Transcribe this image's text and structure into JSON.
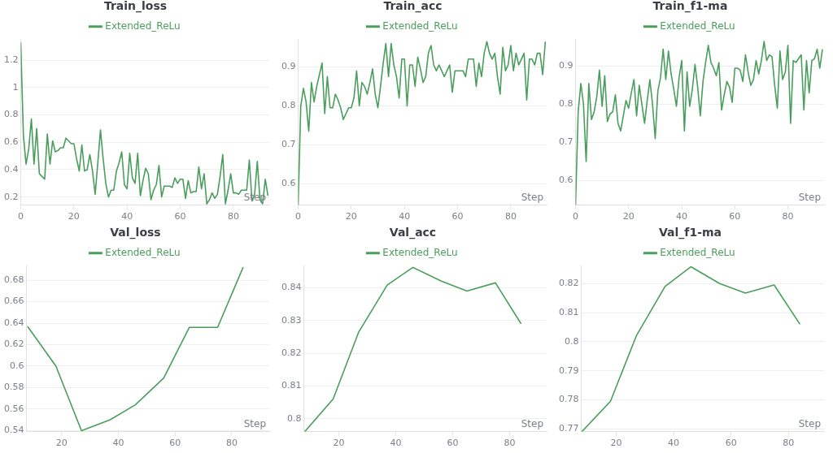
{
  "chart_data": [
    {
      "type": "line",
      "title": "Train_loss",
      "xlabel": "Step",
      "grid": "y",
      "legend": "top",
      "marker": "none",
      "xlim": [
        0,
        93.5
      ],
      "ylim": [
        0.14,
        1.35
      ],
      "xticks": [
        0,
        20,
        40,
        60,
        80
      ],
      "yticks": [
        0.2,
        0.4,
        0.6,
        0.8,
        1,
        1.2
      ],
      "x": [
        0,
        1,
        2,
        3,
        4,
        5,
        6,
        7,
        8,
        9,
        10,
        11,
        12,
        13,
        14,
        15,
        16,
        17,
        18,
        19,
        20,
        21,
        22,
        23,
        24,
        25,
        26,
        27,
        28,
        29,
        30,
        31,
        32,
        33,
        34,
        35,
        36,
        37,
        38,
        39,
        40,
        41,
        42,
        43,
        44,
        45,
        46,
        47,
        48,
        49,
        50,
        51,
        52,
        53,
        54,
        55,
        56,
        57,
        58,
        59,
        60,
        61,
        62,
        63,
        64,
        65,
        66,
        67,
        68,
        69,
        70,
        71,
        72,
        73,
        74,
        75,
        76,
        77,
        78,
        79,
        80,
        81,
        82,
        83,
        84,
        85,
        86,
        87,
        88,
        89,
        90,
        91,
        92,
        93
      ],
      "series": [
        {
          "name": "Extended_ReLu",
          "color": "#4a9e5c",
          "values": [
            1.33,
            0.65,
            0.44,
            0.55,
            0.77,
            0.44,
            0.7,
            0.37,
            0.35,
            0.33,
            0.66,
            0.44,
            0.61,
            0.53,
            0.54,
            0.56,
            0.56,
            0.63,
            0.61,
            0.59,
            0.59,
            0.48,
            0.39,
            0.58,
            0.39,
            0.4,
            0.51,
            0.39,
            0.22,
            0.45,
            0.69,
            0.48,
            0.3,
            0.2,
            0.25,
            0.25,
            0.39,
            0.45,
            0.53,
            0.29,
            0.26,
            0.52,
            0.34,
            0.3,
            0.52,
            0.21,
            0.32,
            0.41,
            0.37,
            0.18,
            0.25,
            0.29,
            0.43,
            0.2,
            0.28,
            0.28,
            0.28,
            0.27,
            0.34,
            0.3,
            0.33,
            0.33,
            0.19,
            0.32,
            0.23,
            0.24,
            0.24,
            0.42,
            0.26,
            0.37,
            0.15,
            0.18,
            0.23,
            0.19,
            0.22,
            0.35,
            0.51,
            0.15,
            0.25,
            0.37,
            0.23,
            0.23,
            0.22,
            0.25,
            0.25,
            0.25,
            0.47,
            0.17,
            0.22,
            0.46,
            0.18,
            0.15,
            0.33,
            0.21
          ]
        }
      ]
    },
    {
      "type": "line",
      "title": "Train_acc",
      "xlabel": "Step",
      "grid": "y",
      "legend": "top",
      "marker": "none",
      "xlim": [
        0,
        93.5
      ],
      "ylim": [
        0.545,
        0.97
      ],
      "xticks": [
        0,
        20,
        40,
        60,
        80
      ],
      "yticks": [
        0.6,
        0.7,
        0.8,
        0.9
      ],
      "x": [
        0,
        1,
        2,
        3,
        4,
        5,
        6,
        7,
        8,
        9,
        10,
        11,
        12,
        13,
        14,
        15,
        16,
        17,
        18,
        19,
        20,
        21,
        22,
        23,
        24,
        25,
        26,
        27,
        28,
        29,
        30,
        31,
        32,
        33,
        34,
        35,
        36,
        37,
        38,
        39,
        40,
        41,
        42,
        43,
        44,
        45,
        46,
        47,
        48,
        49,
        50,
        51,
        52,
        53,
        54,
        55,
        56,
        57,
        58,
        59,
        60,
        61,
        62,
        63,
        64,
        65,
        66,
        67,
        68,
        69,
        70,
        71,
        72,
        73,
        74,
        75,
        76,
        77,
        78,
        79,
        80,
        81,
        82,
        83,
        84,
        85,
        86,
        87,
        88,
        89,
        90,
        91,
        92,
        93
      ],
      "series": [
        {
          "name": "Extended_ReLu",
          "color": "#4a9e5c",
          "values": [
            0.545,
            0.8,
            0.845,
            0.81,
            0.735,
            0.86,
            0.81,
            0.85,
            0.88,
            0.91,
            0.78,
            0.875,
            0.795,
            0.795,
            0.83,
            0.815,
            0.795,
            0.765,
            0.78,
            0.795,
            0.795,
            0.82,
            0.89,
            0.8,
            0.86,
            0.85,
            0.83,
            0.86,
            0.895,
            0.83,
            0.795,
            0.85,
            0.91,
            0.96,
            0.875,
            0.96,
            0.905,
            0.875,
            0.82,
            0.92,
            0.92,
            0.8,
            0.905,
            0.905,
            0.85,
            0.925,
            0.895,
            0.86,
            0.875,
            0.935,
            0.955,
            0.905,
            0.89,
            0.905,
            0.89,
            0.875,
            0.89,
            0.905,
            0.835,
            0.89,
            0.89,
            0.89,
            0.89,
            0.875,
            0.92,
            0.92,
            0.92,
            0.85,
            0.91,
            0.875,
            0.935,
            0.965,
            0.935,
            0.92,
            0.935,
            0.875,
            0.83,
            0.95,
            0.89,
            0.905,
            0.955,
            0.89,
            0.935,
            0.905,
            0.92,
            0.935,
            0.815,
            0.92,
            0.92,
            0.905,
            0.935,
            0.935,
            0.88,
            0.965
          ]
        }
      ]
    },
    {
      "type": "line",
      "title": "Train_f1-ma",
      "xlabel": "Step",
      "grid": "y",
      "legend": "top",
      "marker": "none",
      "xlim": [
        0,
        93.6
      ],
      "ylim": [
        0.535,
        0.97
      ],
      "xticks": [
        0,
        20,
        40,
        60,
        80
      ],
      "yticks": [
        0.6,
        0.7,
        0.8,
        0.9
      ],
      "x": [
        0,
        1,
        2,
        3,
        4,
        5,
        6,
        7,
        8,
        9,
        10,
        11,
        12,
        13,
        14,
        15,
        16,
        17,
        18,
        19,
        20,
        21,
        22,
        23,
        24,
        25,
        26,
        27,
        28,
        29,
        30,
        31,
        32,
        33,
        34,
        35,
        36,
        37,
        38,
        39,
        40,
        41,
        42,
        43,
        44,
        45,
        46,
        47,
        48,
        49,
        50,
        51,
        52,
        53,
        54,
        55,
        56,
        57,
        58,
        59,
        60,
        61,
        62,
        63,
        64,
        65,
        66,
        67,
        68,
        69,
        70,
        71,
        72,
        73,
        74,
        75,
        76,
        77,
        78,
        79,
        80,
        81,
        82,
        83,
        84,
        85,
        86,
        87,
        88,
        89,
        90,
        91,
        92,
        93
      ],
      "series": [
        {
          "name": "Extended_ReLu",
          "color": "#4a9e5c",
          "values": [
            0.535,
            0.78,
            0.855,
            0.8,
            0.65,
            0.855,
            0.76,
            0.78,
            0.82,
            0.89,
            0.795,
            0.875,
            0.755,
            0.775,
            0.78,
            0.825,
            0.75,
            0.73,
            0.77,
            0.81,
            0.79,
            0.83,
            0.865,
            0.77,
            0.85,
            0.8,
            0.75,
            0.81,
            0.865,
            0.8,
            0.71,
            0.835,
            0.87,
            0.945,
            0.865,
            0.94,
            0.88,
            0.84,
            0.795,
            0.87,
            0.915,
            0.73,
            0.885,
            0.795,
            0.84,
            0.905,
            0.845,
            0.77,
            0.86,
            0.91,
            0.955,
            0.91,
            0.895,
            0.875,
            0.91,
            0.785,
            0.825,
            0.86,
            0.845,
            0.805,
            0.895,
            0.895,
            0.89,
            0.86,
            0.93,
            0.885,
            0.85,
            0.865,
            0.915,
            0.88,
            0.915,
            0.965,
            0.915,
            0.93,
            0.925,
            0.85,
            0.79,
            0.94,
            0.865,
            0.885,
            0.955,
            0.75,
            0.915,
            0.91,
            0.92,
            0.93,
            0.785,
            0.915,
            0.83,
            0.915,
            0.92,
            0.945,
            0.895,
            0.945
          ]
        }
      ]
    },
    {
      "type": "line",
      "title": "Val_loss",
      "xlabel": "Step",
      "grid": "y",
      "legend": "top",
      "marker": "none",
      "xlim": [
        7.6,
        93.2
      ],
      "ylim": [
        0.539,
        0.693
      ],
      "xticks": [
        20,
        40,
        60,
        80
      ],
      "yticks": [
        0.54,
        0.56,
        0.58,
        0.6,
        0.62,
        0.64,
        0.66,
        0.68
      ],
      "x": [
        8,
        18,
        27,
        37,
        46,
        56,
        65,
        75,
        84
      ],
      "series": [
        {
          "name": "Extended_ReLu",
          "color": "#4a9e5c",
          "values": [
            0.637,
            0.6,
            0.54,
            0.55,
            0.564,
            0.589,
            0.636,
            0.636,
            0.692
          ]
        }
      ]
    },
    {
      "type": "line",
      "title": "Val_acc",
      "xlabel": "Step",
      "grid": "y",
      "legend": "top",
      "marker": "none",
      "xlim": [
        7.7,
        93
      ],
      "ylim": [
        0.796,
        0.8466
      ],
      "xticks": [
        20,
        40,
        60,
        80
      ],
      "yticks": [
        0.8,
        0.81,
        0.82,
        0.83,
        0.84
      ],
      "x": [
        8,
        18,
        27,
        37,
        46,
        56,
        65,
        75,
        84
      ],
      "series": [
        {
          "name": "Extended_ReLu",
          "color": "#4a9e5c",
          "values": [
            0.796,
            0.806,
            0.8265,
            0.8408,
            0.8462,
            0.842,
            0.839,
            0.8415,
            0.829
          ]
        }
      ]
    },
    {
      "type": "line",
      "title": "Val_f1-ma",
      "xlabel": "Step",
      "grid": "y",
      "legend": "top",
      "marker": "none",
      "xlim": [
        7.8,
        92.4
      ],
      "ylim": [
        0.769,
        0.826
      ],
      "xticks": [
        20,
        40,
        60,
        80
      ],
      "yticks": [
        0.77,
        0.78,
        0.79,
        0.8,
        0.81,
        0.82
      ],
      "x": [
        8,
        18,
        27,
        37,
        46,
        56,
        65,
        75,
        84
      ],
      "series": [
        {
          "name": "Extended_ReLu",
          "color": "#4a9e5c",
          "values": [
            0.769,
            0.7795,
            0.802,
            0.819,
            0.8258,
            0.82,
            0.8167,
            0.8195,
            0.806
          ]
        }
      ]
    }
  ]
}
